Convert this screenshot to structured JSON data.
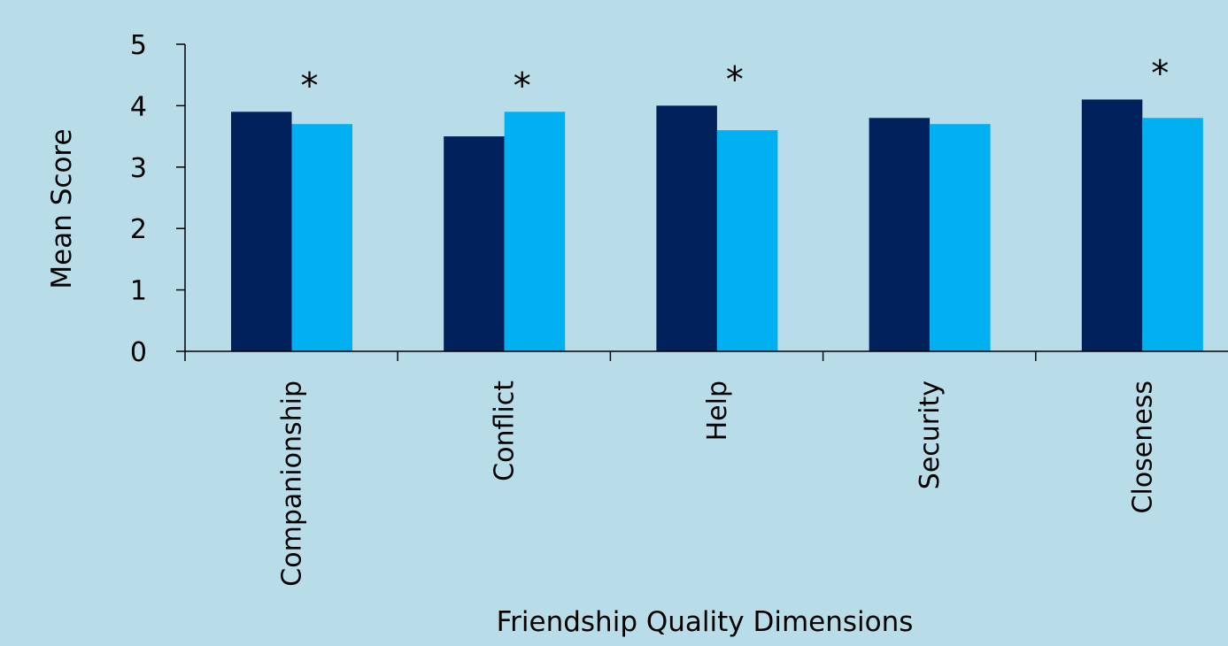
{
  "chart_data": {
    "type": "bar",
    "categories": [
      "Companionship",
      "Conflict",
      "Help",
      "Security",
      "Closeness"
    ],
    "series": [
      {
        "values": [
          3.9,
          3.5,
          4.0,
          3.8,
          4.1
        ],
        "color": "#00215c"
      },
      {
        "values": [
          3.7,
          3.9,
          3.6,
          3.7,
          3.8
        ],
        "color": "#00b0f0"
      }
    ],
    "significance_marks": [
      "*",
      "*",
      "*",
      "",
      "*"
    ],
    "xlabel": "Friendship Quality Dimensions",
    "ylabel": "Mean Score",
    "ylim": [
      0,
      5
    ],
    "yticks": [
      "0",
      "1",
      "2",
      "3",
      "4",
      "5"
    ],
    "grid": false,
    "legend": "none",
    "background_color": "#b8dde8"
  }
}
